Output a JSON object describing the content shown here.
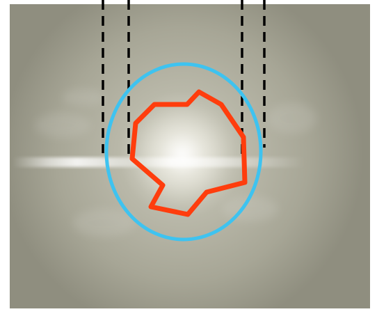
{
  "image": {
    "description_free": true,
    "background_tint": "#a7a696",
    "bright_core_color": "#f4f3ee",
    "colors": {
      "ellipse": "#3ec3f0",
      "contour": "#ff3d0d",
      "dashed_lines": "#000000",
      "frame_background": "#ffffff"
    },
    "overlays": {
      "ellipse_count": 1,
      "contour_count": 1,
      "dashed_line_count": 4
    }
  }
}
